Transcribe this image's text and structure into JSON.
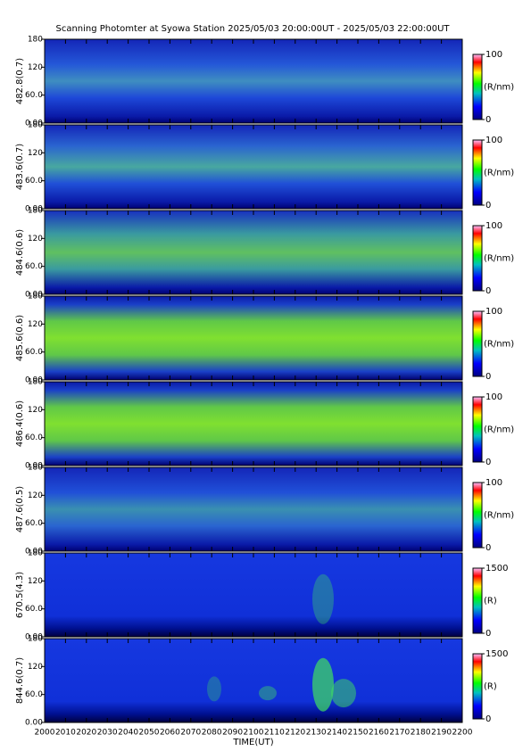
{
  "chart_data": [
    {
      "type": "heatmap",
      "title": "Scanning Photomter at Syowa Station 2025/05/03 20:00:00UT - 2025/05/03 22:00:00UT",
      "ylabel": "482.8(0.7)",
      "ylim": [
        0,
        180
      ],
      "yticks": [
        {
          "value": 0,
          "label": "0.00"
        },
        {
          "value": 60,
          "label": "60.0"
        },
        120,
        180
      ],
      "zlim": [
        0,
        100
      ],
      "zticks": [
        0,
        100
      ],
      "zlabel": "(R/nm)"
    },
    {
      "type": "heatmap",
      "ylabel": "483.6(0.7)",
      "ylim": [
        0,
        180
      ],
      "yticks": [
        {
          "value": 0,
          "label": "0.00"
        },
        {
          "value": 60,
          "label": "60.0"
        },
        120,
        180
      ],
      "zlim": [
        0,
        100
      ],
      "zticks": [
        0,
        100
      ],
      "zlabel": "(R/nm)"
    },
    {
      "type": "heatmap",
      "ylabel": "484.6(0.6)",
      "ylim": [
        0,
        180
      ],
      "yticks": [
        {
          "value": 0,
          "label": "0.00"
        },
        {
          "value": 60,
          "label": "60.0"
        },
        120,
        180
      ],
      "zlim": [
        0,
        100
      ],
      "zticks": [
        0,
        100
      ],
      "zlabel": "(R/nm)"
    },
    {
      "type": "heatmap",
      "ylabel": "485.6(0.6)",
      "ylim": [
        0,
        180
      ],
      "yticks": [
        {
          "value": 0,
          "label": "0.00"
        },
        {
          "value": 60,
          "label": "60.0"
        },
        120,
        180
      ],
      "zlim": [
        0,
        100
      ],
      "zticks": [
        0,
        100
      ],
      "zlabel": "(R/nm)"
    },
    {
      "type": "heatmap",
      "ylabel": "486.4(0.6)",
      "ylim": [
        0,
        180
      ],
      "yticks": [
        {
          "value": 0,
          "label": "0.00"
        },
        {
          "value": 60,
          "label": "60.0"
        },
        120,
        180
      ],
      "zlim": [
        0,
        100
      ],
      "zticks": [
        0,
        100
      ],
      "zlabel": "(R/nm)"
    },
    {
      "type": "heatmap",
      "ylabel": "487.6(0.5)",
      "ylim": [
        0,
        180
      ],
      "yticks": [
        {
          "value": 0,
          "label": "0.00"
        },
        {
          "value": 60,
          "label": "60.0"
        },
        120,
        180
      ],
      "zlim": [
        0,
        100
      ],
      "zticks": [
        0,
        100
      ],
      "zlabel": "(R/nm)"
    },
    {
      "type": "heatmap",
      "ylabel": "670.5(4.3)",
      "ylim": [
        0,
        180
      ],
      "yticks": [
        {
          "value": 0,
          "label": "0.00"
        },
        {
          "value": 60,
          "label": "60.0"
        },
        120,
        180
      ],
      "zlim": [
        0,
        1500
      ],
      "zticks": [
        0,
        1500
      ],
      "zlabel": "(R)"
    },
    {
      "type": "heatmap",
      "ylabel": "844.6(0.7)",
      "ylim": [
        0,
        180
      ],
      "yticks": [
        {
          "value": 0,
          "label": "0.00"
        },
        {
          "value": 60,
          "label": "60.0"
        },
        120,
        180
      ],
      "zlim": [
        0,
        1500
      ],
      "zticks": [
        0,
        1500
      ],
      "zlabel": "(R)",
      "xlabel": "TIME(UT)",
      "xlim": [
        2000,
        2200
      ],
      "xticks": [
        2000,
        2010,
        2020,
        2030,
        2040,
        2050,
        2060,
        2070,
        2080,
        2090,
        2100,
        2110,
        2120,
        2130,
        2140,
        2150,
        2160,
        2170,
        2180,
        2190,
        2200
      ]
    }
  ]
}
